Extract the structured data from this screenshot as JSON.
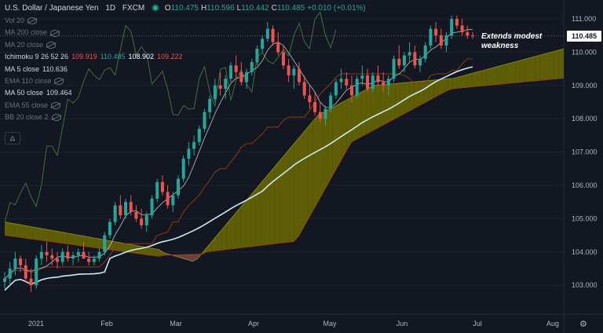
{
  "header": {
    "symbol": "U.S. Dollar / Japanese Yen",
    "interval": "1D",
    "exchange": "FXCM",
    "ohlc": [
      {
        "label": "O",
        "value": "110.475"
      },
      {
        "label": "H",
        "value": "110.596"
      },
      {
        "label": "L",
        "value": "110.442"
      },
      {
        "label": "C",
        "value": "110.485"
      },
      {
        "label": "",
        "value": "+0.010 (+0.01%)"
      }
    ]
  },
  "indicators": [
    {
      "label": "Vol 20",
      "values": [],
      "hidden": true
    },
    {
      "label": "MA 200 close",
      "values": [],
      "hidden": true
    },
    {
      "label": "MA 20 close",
      "values": [],
      "hidden": true
    },
    {
      "label": "Ichimoku 9 26 52 26",
      "values": [
        {
          "v": "109.919",
          "color": "#ef5350"
        },
        {
          "v": "110.485",
          "color": "#26a69a"
        },
        {
          "v": "108.902",
          "color": "#ffffff"
        },
        {
          "v": "109.222",
          "color": "#ef5350"
        }
      ],
      "hidden": false
    },
    {
      "label": "MA 5 close",
      "values": [
        {
          "v": "110.636",
          "color": "#d1d4dc"
        }
      ],
      "hidden": false
    },
    {
      "label": "EMA 110 close",
      "values": [],
      "hidden": true
    },
    {
      "label": "MA 50 close",
      "values": [
        {
          "v": "109.464",
          "color": "#d1d4dc"
        }
      ],
      "hidden": false
    },
    {
      "label": "EMA 55 close",
      "values": [],
      "hidden": true
    },
    {
      "label": "BB 20 close 2",
      "values": [],
      "hidden": true
    }
  ],
  "annotation": "Extends modest\nweakness",
  "last_price": "110.485",
  "colors": {
    "bg": "#131722",
    "up": "#26a69a",
    "down": "#ef5350",
    "cloud_bull": "#6b6b00",
    "cloud_bear": "#7a4a4a",
    "ma50": "#cfe9f5",
    "ma5": "#d1d4dc",
    "lagging": "#3f6e3a",
    "kijun": "#8a3a1a"
  },
  "chart_data": {
    "type": "candlestick",
    "y_ticks": [
      "111.000",
      "110.000",
      "109.000",
      "108.000",
      "107.000",
      "106.000",
      "105.000",
      "104.000",
      "103.000"
    ],
    "ylim": [
      102.5,
      111.5
    ],
    "x_ticks": [
      "2021",
      "Feb",
      "Mar",
      "Apr",
      "May",
      "Jun",
      "Jul",
      "Aug"
    ],
    "candles": [
      [
        103.1,
        103.4,
        102.9,
        103.2
      ],
      [
        103.2,
        103.7,
        103.0,
        103.5
      ],
      [
        103.5,
        104.0,
        103.3,
        103.8
      ],
      [
        103.8,
        103.9,
        103.4,
        103.6
      ],
      [
        103.6,
        103.8,
        103.1,
        103.2
      ],
      [
        103.2,
        103.5,
        102.8,
        103.0
      ],
      [
        103.0,
        103.9,
        102.9,
        103.8
      ],
      [
        103.8,
        104.2,
        103.6,
        104.0
      ],
      [
        104.0,
        104.3,
        103.7,
        103.9
      ],
      [
        103.9,
        104.1,
        103.6,
        103.8
      ],
      [
        103.8,
        104.0,
        103.5,
        103.7
      ],
      [
        103.7,
        104.1,
        103.6,
        104.0
      ],
      [
        104.0,
        104.2,
        103.7,
        103.8
      ],
      [
        103.8,
        104.0,
        103.6,
        103.9
      ],
      [
        103.9,
        104.1,
        103.7,
        104.0
      ],
      [
        104.0,
        104.3,
        103.8,
        103.8
      ],
      [
        103.8,
        104.0,
        103.6,
        103.7
      ],
      [
        103.7,
        103.9,
        103.6,
        103.8
      ],
      [
        103.8,
        104.1,
        103.7,
        104.0
      ],
      [
        104.0,
        104.6,
        103.9,
        104.5
      ],
      [
        104.5,
        105.0,
        104.4,
        104.9
      ],
      [
        104.9,
        105.5,
        104.8,
        105.4
      ],
      [
        105.4,
        105.7,
        105.0,
        105.1
      ],
      [
        105.1,
        105.6,
        105.0,
        105.5
      ],
      [
        105.5,
        105.7,
        105.1,
        105.2
      ],
      [
        105.2,
        105.4,
        104.9,
        105.0
      ],
      [
        105.0,
        105.3,
        104.7,
        104.8
      ],
      [
        104.8,
        105.2,
        104.6,
        105.1
      ],
      [
        105.1,
        105.7,
        105.0,
        105.6
      ],
      [
        105.6,
        106.2,
        105.5,
        106.1
      ],
      [
        106.1,
        106.3,
        105.7,
        105.8
      ],
      [
        105.8,
        106.0,
        105.3,
        105.4
      ],
      [
        105.4,
        105.8,
        105.2,
        105.7
      ],
      [
        105.7,
        106.3,
        105.6,
        106.2
      ],
      [
        106.2,
        106.9,
        106.1,
        106.8
      ],
      [
        106.8,
        107.3,
        106.6,
        107.1
      ],
      [
        107.1,
        107.5,
        106.9,
        107.3
      ],
      [
        107.3,
        107.8,
        107.2,
        107.7
      ],
      [
        107.7,
        108.3,
        107.6,
        108.2
      ],
      [
        108.2,
        108.7,
        108.0,
        108.6
      ],
      [
        108.6,
        109.2,
        108.5,
        109.0
      ],
      [
        109.0,
        109.4,
        108.7,
        108.9
      ],
      [
        108.9,
        109.3,
        108.6,
        109.2
      ],
      [
        109.2,
        109.7,
        109.1,
        109.6
      ],
      [
        109.6,
        109.9,
        109.2,
        109.4
      ],
      [
        109.4,
        109.7,
        109.0,
        109.1
      ],
      [
        109.1,
        109.5,
        108.9,
        109.4
      ],
      [
        109.4,
        109.8,
        109.3,
        109.7
      ],
      [
        109.7,
        110.2,
        109.6,
        110.1
      ],
      [
        110.1,
        110.5,
        110.0,
        110.4
      ],
      [
        110.4,
        110.9,
        110.3,
        110.7
      ],
      [
        110.7,
        110.8,
        110.2,
        110.3
      ],
      [
        110.3,
        110.6,
        109.9,
        110.0
      ],
      [
        110.0,
        110.2,
        109.5,
        109.6
      ],
      [
        109.6,
        109.8,
        109.1,
        109.3
      ],
      [
        109.3,
        109.6,
        108.9,
        109.5
      ],
      [
        109.5,
        109.7,
        109.0,
        109.1
      ],
      [
        109.1,
        109.3,
        108.6,
        108.7
      ],
      [
        108.7,
        109.0,
        108.3,
        108.5
      ],
      [
        108.5,
        108.8,
        108.1,
        108.2
      ],
      [
        108.2,
        108.5,
        107.9,
        108.0
      ],
      [
        108.0,
        108.4,
        107.8,
        108.3
      ],
      [
        108.3,
        108.8,
        108.2,
        108.7
      ],
      [
        108.7,
        109.2,
        108.6,
        109.1
      ],
      [
        109.1,
        109.5,
        108.9,
        109.2
      ],
      [
        109.2,
        109.4,
        108.9,
        109.0
      ],
      [
        109.0,
        109.3,
        108.5,
        108.7
      ],
      [
        108.7,
        109.3,
        108.6,
        109.2
      ],
      [
        109.2,
        109.6,
        109.0,
        109.3
      ],
      [
        109.3,
        109.5,
        108.8,
        108.9
      ],
      [
        108.9,
        109.4,
        108.8,
        109.3
      ],
      [
        109.3,
        109.6,
        109.0,
        109.1
      ],
      [
        109.1,
        109.4,
        108.8,
        109.0
      ],
      [
        109.0,
        109.3,
        108.7,
        109.2
      ],
      [
        109.2,
        109.9,
        109.1,
        109.8
      ],
      [
        109.8,
        110.2,
        109.5,
        109.6
      ],
      [
        109.6,
        110.0,
        109.4,
        109.9
      ],
      [
        109.9,
        110.3,
        109.7,
        110.0
      ],
      [
        110.0,
        110.2,
        109.5,
        109.6
      ],
      [
        109.6,
        109.9,
        109.4,
        109.8
      ],
      [
        109.8,
        110.3,
        109.7,
        110.2
      ],
      [
        110.2,
        110.8,
        110.1,
        110.7
      ],
      [
        110.7,
        110.9,
        110.3,
        110.5
      ],
      [
        110.5,
        110.7,
        110.1,
        110.2
      ],
      [
        110.2,
        110.6,
        110.0,
        110.5
      ],
      [
        110.5,
        111.1,
        110.4,
        111.0
      ],
      [
        111.0,
        111.1,
        110.7,
        110.8
      ],
      [
        110.8,
        111.0,
        110.5,
        110.6
      ],
      [
        110.6,
        110.8,
        110.4,
        110.5
      ],
      [
        110.5,
        110.6,
        110.4,
        110.485
      ]
    ]
  }
}
